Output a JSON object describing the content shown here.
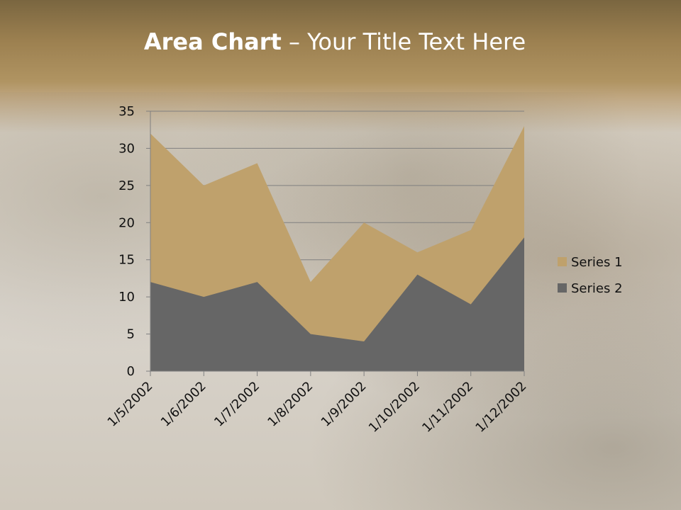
{
  "slide": {
    "title_bold": "Area Chart",
    "title_rest": " – Your Title Text Here"
  },
  "chart_data": {
    "type": "area",
    "title": "",
    "xlabel": "",
    "ylabel": "",
    "categories": [
      "1/5/2002",
      "1/6/2002",
      "1/7/2002",
      "1/8/2002",
      "1/9/2002",
      "1/10/2002",
      "1/11/2002",
      "1/12/2002"
    ],
    "series": [
      {
        "name": "Series 1",
        "color": "#bfa16c",
        "values": [
          32,
          25,
          28,
          12,
          20,
          16,
          19,
          33
        ]
      },
      {
        "name": "Series 2",
        "color": "#666666",
        "values": [
          12,
          10,
          12,
          5,
          4,
          13,
          9,
          18
        ]
      }
    ],
    "ylim": [
      0,
      35
    ],
    "yticks": [
      "0",
      "5",
      "10",
      "15",
      "20",
      "25",
      "30",
      "35"
    ],
    "grid": true,
    "legend": "right"
  }
}
